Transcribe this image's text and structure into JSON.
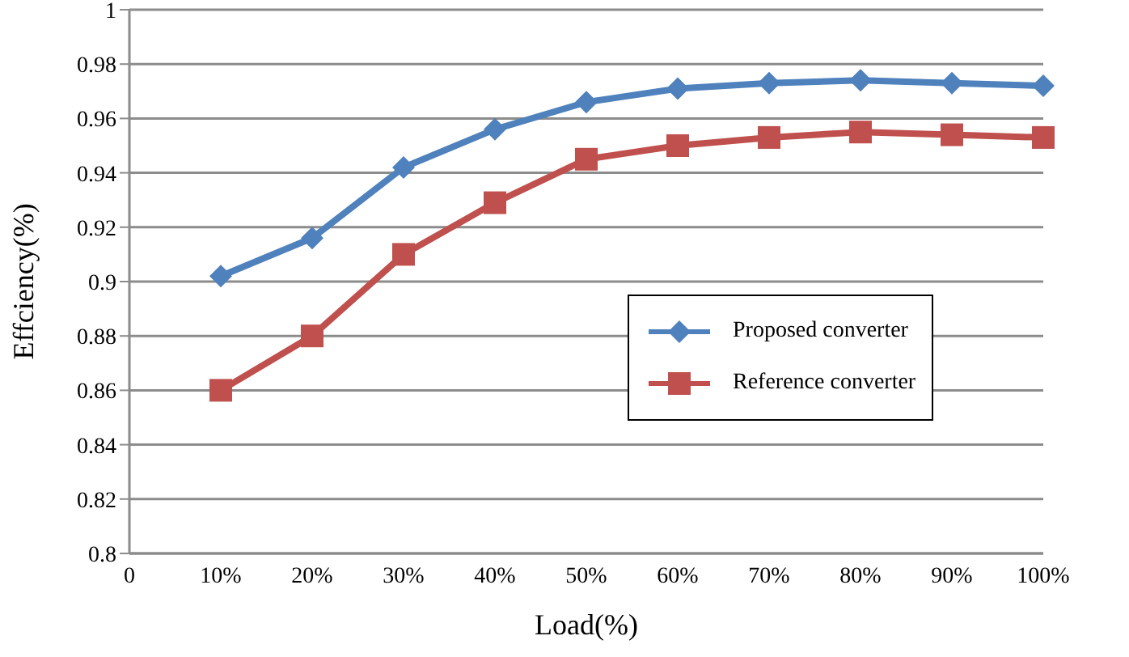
{
  "chart_data": {
    "type": "line",
    "xlabel": "Load(%)",
    "ylabel": "Effciency(%)",
    "categories": [
      "0",
      "10%",
      "20%",
      "30%",
      "40%",
      "50%",
      "60%",
      "70%",
      "80%",
      "90%",
      "100%"
    ],
    "series": [
      {
        "name": "Proposed converter",
        "color": "#4f81bd",
        "marker": "diamond",
        "values": [
          null,
          0.902,
          0.916,
          0.942,
          0.956,
          0.966,
          0.971,
          0.973,
          0.974,
          0.973,
          0.972
        ]
      },
      {
        "name": "Reference converter",
        "color": "#c0504d",
        "marker": "square",
        "values": [
          null,
          0.86,
          0.88,
          0.91,
          0.929,
          0.945,
          0.95,
          0.953,
          0.955,
          0.954,
          0.953
        ]
      }
    ],
    "ylim": [
      0.8,
      1
    ],
    "yticks": [
      0.8,
      0.82,
      0.84,
      0.86,
      0.88,
      0.9,
      0.92,
      0.94,
      0.96,
      0.98,
      1
    ],
    "grid": "y",
    "legend": "right"
  }
}
